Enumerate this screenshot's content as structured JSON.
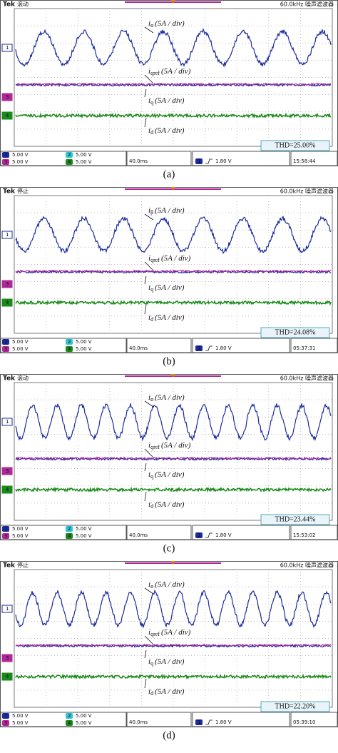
{
  "panels": [
    {
      "caption": "(a)",
      "brand": "Tek",
      "mode": "滚动",
      "header_right": "60.0kHz 噪声滤波器",
      "channels": [
        {
          "num": "1",
          "scale": "5.00 V"
        },
        {
          "num": "2",
          "scale": "5.00 V"
        },
        {
          "num": "3",
          "scale": "5.00 V"
        },
        {
          "num": "4",
          "scale": "5.00 V"
        }
      ],
      "timebase": "40.0ms",
      "trigger_ch": "1",
      "trigger": "1.80 V",
      "time": "15:58:44",
      "thd": "THD=25.00%",
      "labels": [
        {
          "main": "i",
          "sub": "α",
          "unit": "(5A / div)"
        },
        {
          "main": "i",
          "sub": "qref",
          "unit": "(5A / div)"
        },
        {
          "main": "i",
          "sub": "q",
          "unit": "(5A / div)"
        },
        {
          "main": "i",
          "sub": "d",
          "unit": "(5A / div)"
        }
      ]
    },
    {
      "caption": "(b)",
      "brand": "Tek",
      "mode": "停止",
      "header_right": "60.0kHz 噪声滤波器",
      "channels": [
        {
          "num": "1",
          "scale": "5.00 V"
        },
        {
          "num": "2",
          "scale": "5.00 V"
        },
        {
          "num": "3",
          "scale": "5.00 V"
        },
        {
          "num": "4",
          "scale": "5.00 V"
        }
      ],
      "timebase": "40.0ms",
      "trigger_ch": "1",
      "trigger": "1.80 V",
      "time": "05:37:31",
      "thd": "THD=24.08%",
      "labels": [
        {
          "main": "i",
          "sub": "β",
          "unit": "(5A / div)"
        },
        {
          "main": "i",
          "sub": "qref",
          "unit": "(5A / div)"
        },
        {
          "main": "i",
          "sub": "q",
          "unit": "(5A / div)"
        },
        {
          "main": "i",
          "sub": "d",
          "unit": "(5A / div)"
        }
      ]
    },
    {
      "caption": "(c)",
      "brand": "Tek",
      "mode": "滚动",
      "header_right": "60.0kHz 噪声滤波器",
      "channels": [
        {
          "num": "1",
          "scale": "5.00 V"
        },
        {
          "num": "2",
          "scale": "5.00 V"
        },
        {
          "num": "3",
          "scale": "5.00 V"
        },
        {
          "num": "4",
          "scale": "5.00 V"
        }
      ],
      "timebase": "40.0ms",
      "trigger_ch": "1",
      "trigger": "1.80 V",
      "time": "15:53:02",
      "thd": "THD=23.44%",
      "labels": [
        {
          "main": "i",
          "sub": "α",
          "unit": "(5A / div)"
        },
        {
          "main": "i",
          "sub": "qref",
          "unit": "(5A / div)"
        },
        {
          "main": "i",
          "sub": "q",
          "unit": "(5A / div)"
        },
        {
          "main": "i",
          "sub": "d",
          "unit": "(5A / div)"
        }
      ]
    },
    {
      "caption": "(d)",
      "brand": "Tek",
      "mode": "停止",
      "header_right": "60.0kHz 噪声滤波器",
      "channels": [
        {
          "num": "1",
          "scale": "5.00 V"
        },
        {
          "num": "2",
          "scale": "5.00 V"
        },
        {
          "num": "3",
          "scale": "5.00 V"
        },
        {
          "num": "4",
          "scale": "5.00 V"
        }
      ],
      "timebase": "40.0ms",
      "trigger_ch": "1",
      "trigger": "1.80 V",
      "time": "05:39:10",
      "thd": "THD=22.20%",
      "labels": [
        {
          "main": "i",
          "sub": "α",
          "unit": "(5A / div)"
        },
        {
          "main": "i",
          "sub": "qref",
          "unit": "(5A / div)"
        },
        {
          "main": "i",
          "sub": "q",
          "unit": "(5A / div)"
        },
        {
          "main": "i",
          "sub": "d",
          "unit": "(5A / div)"
        }
      ]
    }
  ]
}
